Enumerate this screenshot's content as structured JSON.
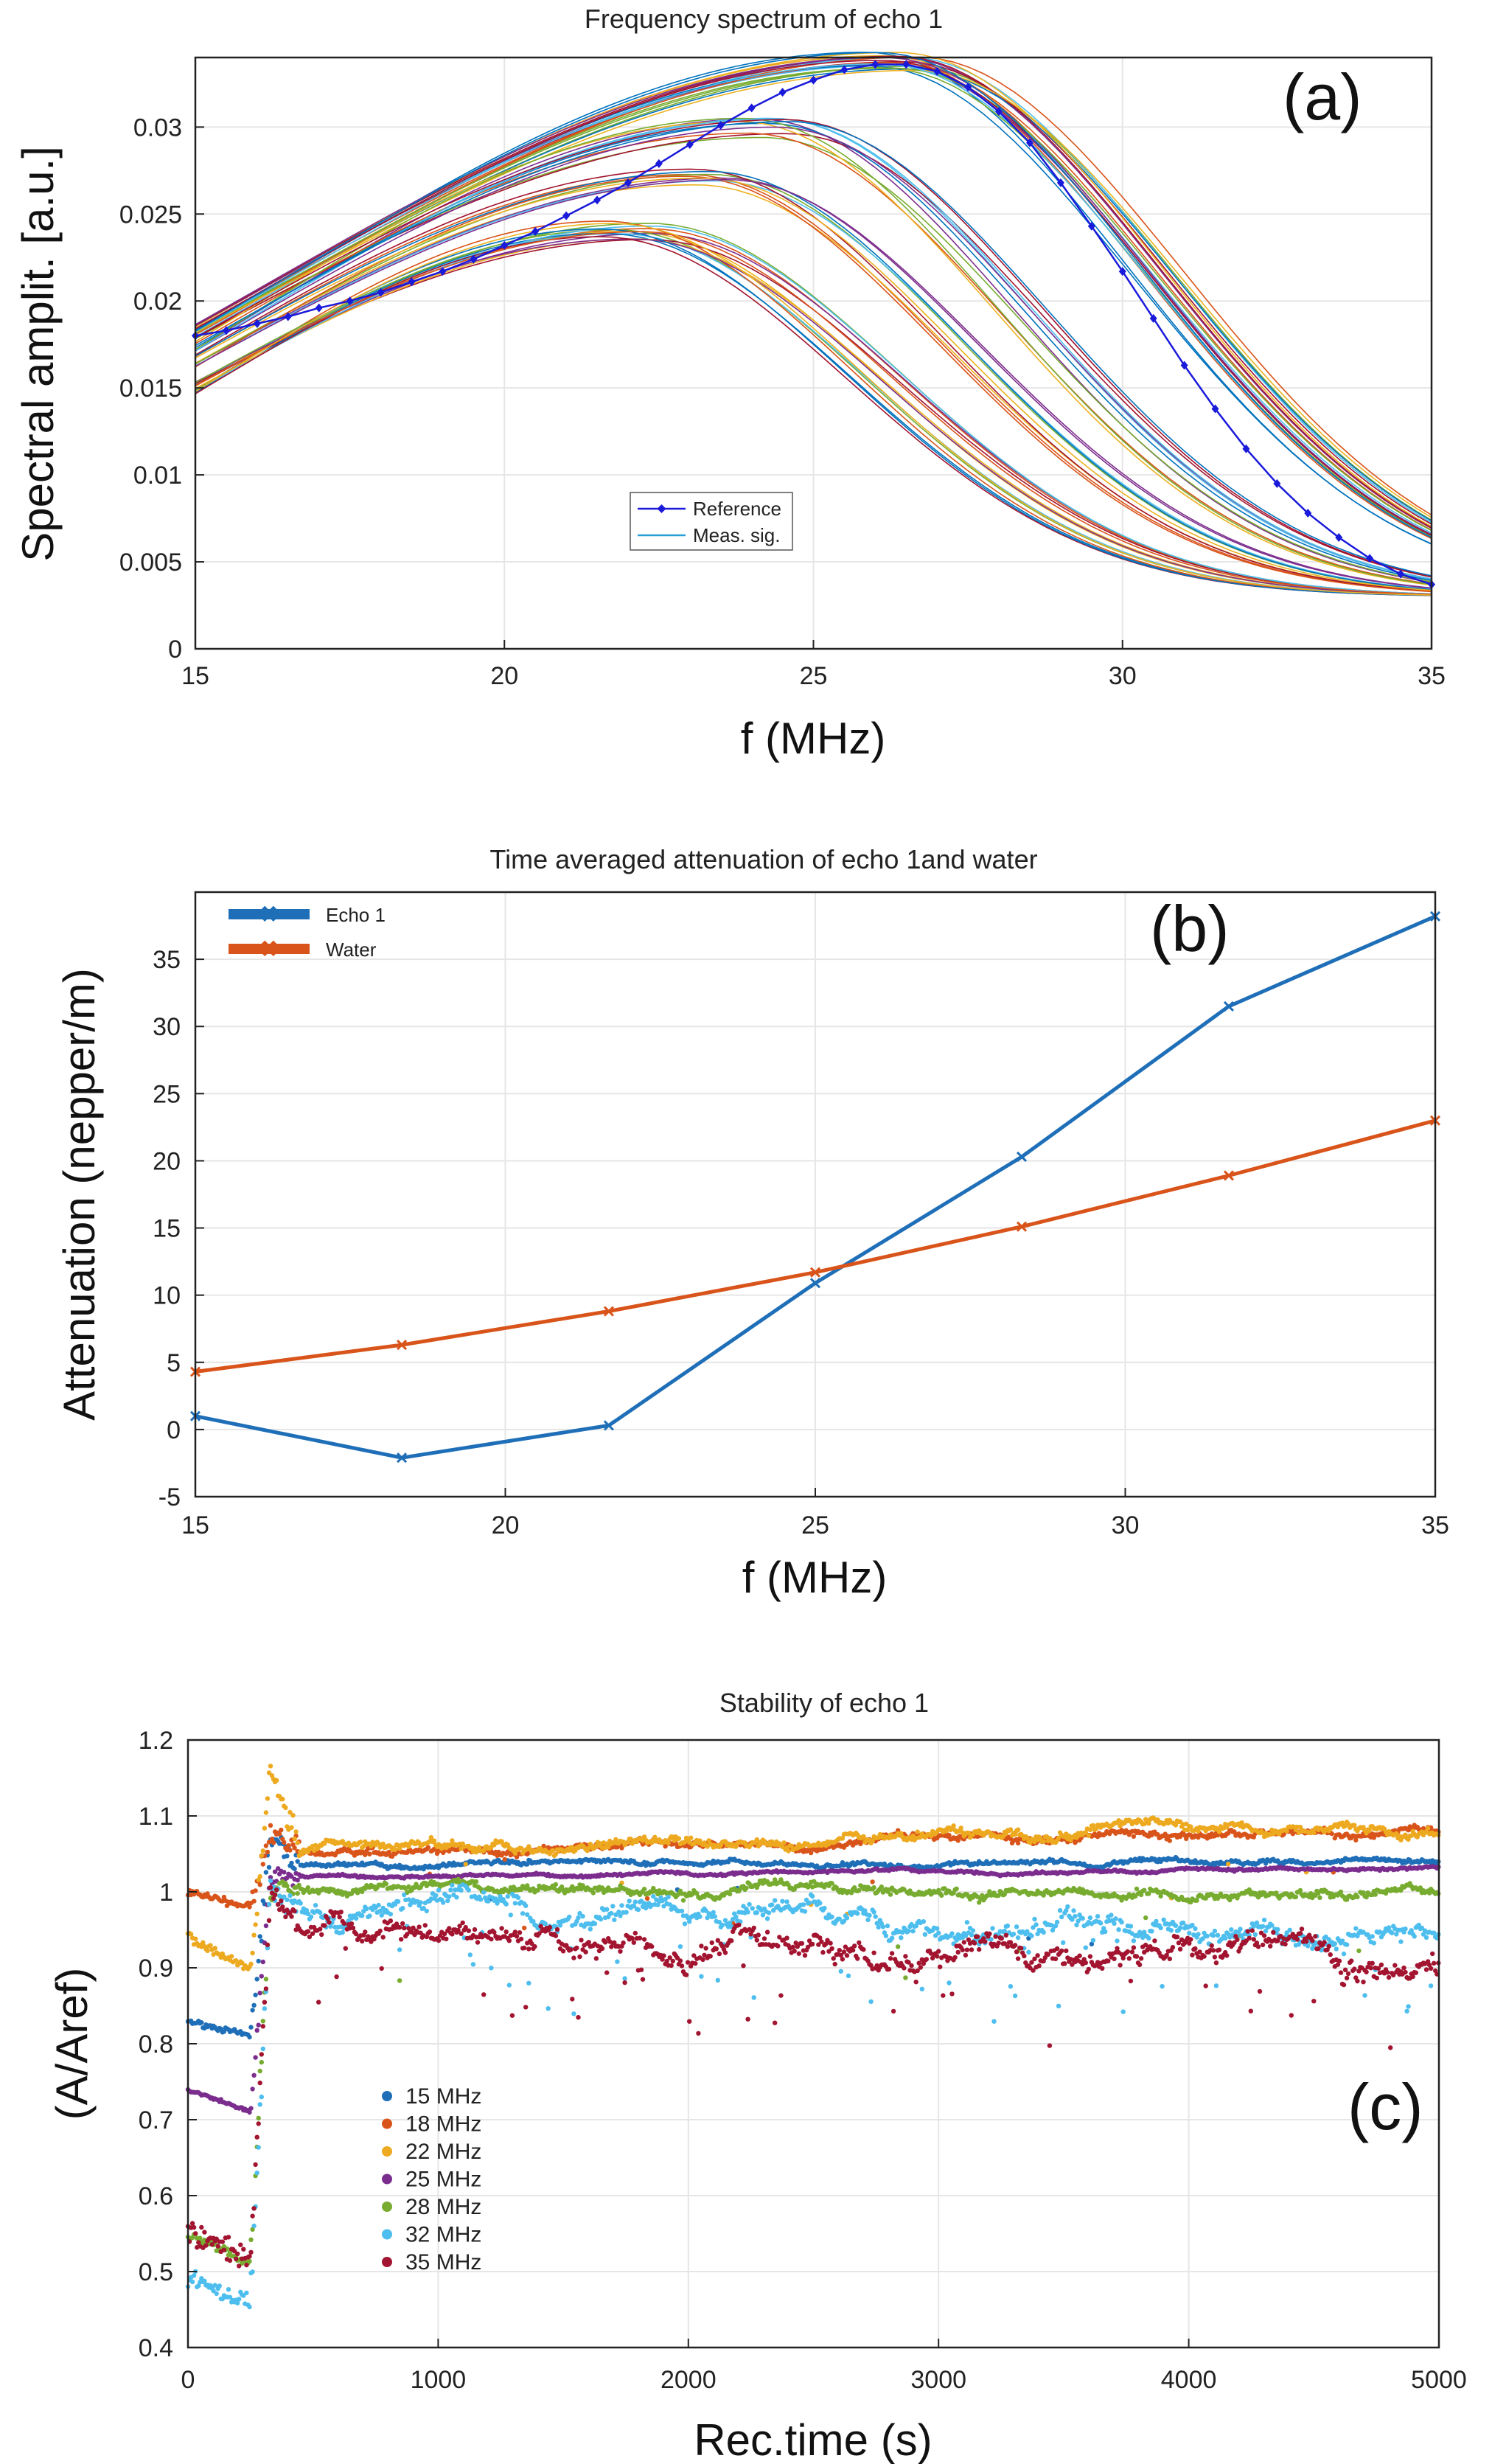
{
  "chart_data": [
    {
      "id": "a",
      "type": "line",
      "panel_label": "(a)",
      "title": "Frequency spectrum of echo 1",
      "xlabel": "f (MHz)",
      "ylabel": "Spectral amplit. [a.u.]",
      "xlim": [
        15,
        35
      ],
      "ylim": [
        0,
        0.034
      ],
      "xticks": [
        15,
        20,
        25,
        30,
        35
      ],
      "yticks": [
        0,
        0.005,
        0.01,
        0.015,
        0.02,
        0.025,
        0.03
      ],
      "ytick_labels": [
        "0",
        "0.005",
        "0.01",
        "0.015",
        "0.02",
        "0.025",
        "0.03"
      ],
      "grid": true,
      "legend_position": "lower-center",
      "reference": {
        "name": "Reference",
        "color": "#1a1adb",
        "x": [
          15,
          15.5,
          16,
          16.5,
          17,
          17.5,
          18,
          18.5,
          19,
          19.5,
          20,
          20.5,
          21,
          21.5,
          22,
          22.5,
          23,
          23.5,
          24,
          24.5,
          25,
          25.5,
          26,
          26.5,
          27,
          27.5,
          28,
          28.5,
          29,
          29.5,
          30,
          30.5,
          31,
          31.5,
          32,
          32.5,
          33,
          33.5,
          34,
          34.5,
          35
        ],
        "y": [
          0.018,
          0.0183,
          0.0187,
          0.0191,
          0.0196,
          0.02,
          0.0205,
          0.0211,
          0.0217,
          0.0224,
          0.0232,
          0.024,
          0.0249,
          0.0258,
          0.0268,
          0.0279,
          0.029,
          0.0301,
          0.0311,
          0.032,
          0.0327,
          0.0333,
          0.0336,
          0.0336,
          0.0332,
          0.0323,
          0.0309,
          0.0291,
          0.0268,
          0.0243,
          0.0217,
          0.019,
          0.0163,
          0.0138,
          0.0115,
          0.0095,
          0.0078,
          0.0064,
          0.0052,
          0.0043,
          0.0037
        ]
      },
      "measured": {
        "name": "Meas. sig.",
        "color": "#2a9fd6",
        "count": 60,
        "description_groups": [
          {
            "n": 22,
            "f_peak": 26.3,
            "a_peak": 0.0338,
            "left_amp": 0.0183
          },
          {
            "n": 16,
            "f_peak": 22.0,
            "a_peak": 0.024,
            "left_amp": 0.015
          },
          {
            "n": 12,
            "f_peak": 24.2,
            "a_peak": 0.03,
            "left_amp": 0.0175
          },
          {
            "n": 10,
            "f_peak": 23.2,
            "a_peak": 0.027,
            "left_amp": 0.0165
          }
        ]
      }
    },
    {
      "id": "b",
      "type": "line",
      "panel_label": "(b)",
      "title": "Time averaged attenuation of echo 1and water",
      "xlabel": "f (MHz)",
      "ylabel": "Attenuation (nepper/m)",
      "xlim": [
        15,
        35
      ],
      "ylim": [
        -5,
        40
      ],
      "xticks": [
        15,
        20,
        25,
        30,
        35
      ],
      "yticks": [
        -5,
        0,
        5,
        10,
        15,
        20,
        25,
        30,
        35
      ],
      "grid": true,
      "legend_position": "top-left",
      "series": [
        {
          "name": "Echo 1",
          "color": "#1f6fb8",
          "x": [
            15,
            18.33,
            21.67,
            25,
            28.33,
            31.67,
            35
          ],
          "values": [
            1.0,
            -2.1,
            0.3,
            10.9,
            20.3,
            31.5,
            38.2
          ]
        },
        {
          "name": "Water",
          "color": "#d9541a",
          "x": [
            15,
            18.33,
            21.67,
            25,
            28.33,
            31.67,
            35
          ],
          "values": [
            4.3,
            6.3,
            8.8,
            11.7,
            15.1,
            18.9,
            23.0
          ]
        }
      ]
    },
    {
      "id": "c",
      "type": "scatter",
      "panel_label": "(c)",
      "title": "Stability of echo 1",
      "xlabel": "Rec.time (s)",
      "ylabel": "(A/Aref)",
      "xlim": [
        0,
        5000
      ],
      "ylim": [
        0.4,
        1.2
      ],
      "xticks": [
        0,
        1000,
        2000,
        3000,
        4000,
        5000
      ],
      "yticks": [
        0.4,
        0.5,
        0.6,
        0.7,
        0.8,
        0.9,
        1.0,
        1.1,
        1.2
      ],
      "ytick_labels": [
        "0.4",
        "0.5",
        "0.6",
        "0.7",
        "0.8",
        "0.9",
        "1",
        "1.1",
        "1.2"
      ],
      "grid": true,
      "legend_position": "lower-left",
      "transition_time_s": [
        250,
        450
      ],
      "series": [
        {
          "name": "15 MHz",
          "color": "#1f6fb8",
          "initial": 0.83,
          "initial_end": 0.81,
          "spike": 1.07,
          "steady": 1.035,
          "steady_end": 1.042,
          "noise": 0.005,
          "outliers": 0.004
        },
        {
          "name": "18 MHz",
          "color": "#d9541a",
          "initial": 1.0,
          "initial_end": 0.98,
          "spike": 1.08,
          "steady": 1.05,
          "steady_end": 1.085,
          "noise": 0.008,
          "outliers": 0.006
        },
        {
          "name": "22 MHz",
          "color": "#eda91f",
          "initial": 0.94,
          "initial_end": 0.9,
          "spike": 1.16,
          "steady": 1.055,
          "steady_end": 1.09,
          "noise": 0.01,
          "outliers": 0.01
        },
        {
          "name": "25 MHz",
          "color": "#7b2d8e",
          "initial": 0.74,
          "initial_end": 0.71,
          "spike": 1.02,
          "steady": 1.02,
          "steady_end": 1.032,
          "noise": 0.003,
          "outliers": 0.0
        },
        {
          "name": "28 MHz",
          "color": "#77ac30",
          "initial": 0.55,
          "initial_end": 0.51,
          "spike": 1.0,
          "steady": 1.005,
          "steady_end": 1.0,
          "noise": 0.01,
          "outliers": 0.01
        },
        {
          "name": "32 MHz",
          "color": "#4dbeee",
          "initial": 0.49,
          "initial_end": 0.46,
          "spike": 1.0,
          "steady": 0.98,
          "steady_end": 0.945,
          "noise": 0.02,
          "outliers": 0.06
        },
        {
          "name": "35 MHz",
          "color": "#a2142f",
          "initial": 0.55,
          "initial_end": 0.52,
          "spike": 1.0,
          "steady": 0.95,
          "steady_end": 0.9,
          "noise": 0.025,
          "outliers": 0.05
        }
      ]
    }
  ]
}
